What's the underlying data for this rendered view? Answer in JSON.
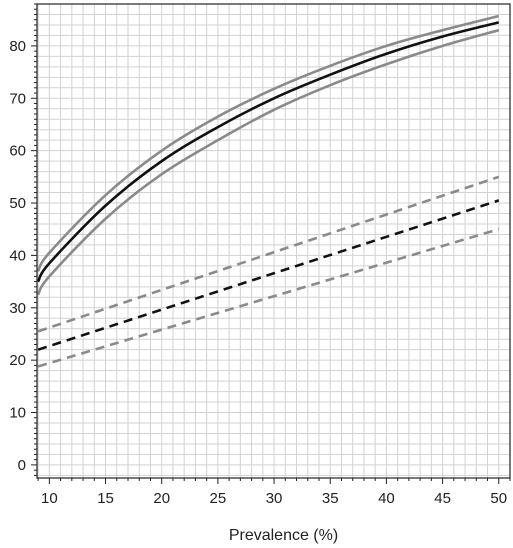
{
  "chart_data": {
    "type": "line",
    "title": "",
    "xlabel": "Prevalence (%)",
    "ylabel": "",
    "xlim": [
      8.9,
      51.0
    ],
    "ylim": [
      -2.5,
      88
    ],
    "x_ticks": [
      10,
      15,
      20,
      25,
      30,
      35,
      40,
      45,
      50
    ],
    "y_ticks": [
      0,
      10,
      20,
      30,
      40,
      50,
      60,
      70,
      80
    ],
    "x_tick_labels": [
      "10",
      "15",
      "20",
      "25",
      "30",
      "35",
      "40",
      "45",
      "50"
    ],
    "y_tick_labels": [
      "0",
      "10",
      "20",
      "30",
      "40",
      "50",
      "60",
      "70",
      "80"
    ],
    "grid": true,
    "series": [
      {
        "style": "solid",
        "color": "#111111",
        "x": [
          9,
          10,
          15,
          20,
          25,
          30,
          35,
          40,
          45,
          50
        ],
        "y": [
          35.0,
          38.5,
          49.5,
          58.0,
          64.5,
          70.0,
          74.5,
          78.5,
          81.8,
          84.5
        ]
      },
      {
        "style": "solid",
        "color": "#8a8a8a",
        "x": [
          9,
          10,
          15,
          20,
          25,
          30,
          35,
          40,
          45,
          50
        ],
        "y": [
          37.0,
          40.5,
          51.5,
          60.0,
          66.5,
          71.8,
          76.2,
          80.0,
          83.0,
          85.7
        ]
      },
      {
        "style": "solid",
        "color": "#8a8a8a",
        "x": [
          9,
          10,
          15,
          20,
          25,
          30,
          35,
          40,
          45,
          50
        ],
        "y": [
          32.5,
          36.0,
          47.0,
          55.5,
          62.0,
          67.8,
          72.5,
          76.5,
          80.0,
          83.0
        ]
      },
      {
        "style": "dashed",
        "color": "#111111",
        "x": [
          9,
          50
        ],
        "y": [
          22.0,
          50.5
        ]
      },
      {
        "style": "dashed",
        "color": "#8a8a8a",
        "x": [
          9,
          50
        ],
        "y": [
          25.5,
          55.0
        ]
      },
      {
        "style": "dashed",
        "color": "#8a8a8a",
        "x": [
          9,
          50
        ],
        "y": [
          18.8,
          45.0
        ]
      }
    ]
  }
}
